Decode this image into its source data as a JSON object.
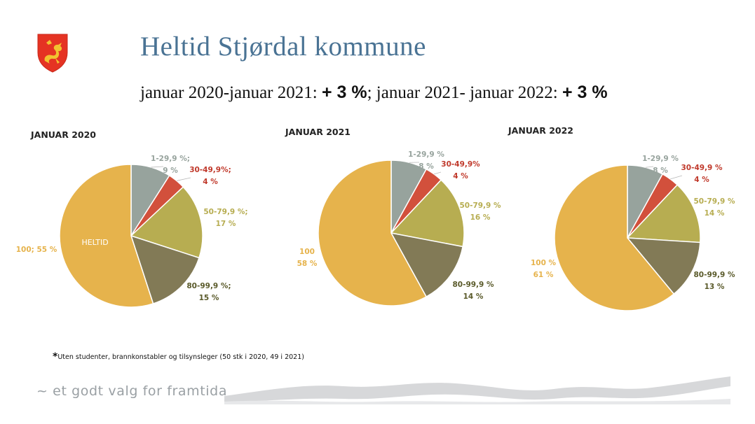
{
  "title": "Heltid Stjørdal kommune",
  "subtitle": {
    "p1": "januar 2020-januar 2021: ",
    "b1": "+ 3 %",
    "p2": "; januar 2021- januar 2022: ",
    "b2": "+ 3 %"
  },
  "footnote": {
    "star": "*",
    "text": "Uten studenter, brannkonstabler og tilsynsleger (50 stk i 2020, 49 i 2021)"
  },
  "tagline": "~ et godt valg for framtida",
  "colors": {
    "title": "#4a7394",
    "grey": "#97a39d",
    "red": "#d2503c",
    "olive": "#b7ad51",
    "dark_olive": "#827a56",
    "gold": "#e6b34c"
  },
  "chart_data": [
    {
      "type": "pie",
      "title": "JANUAR 2020",
      "slices": [
        {
          "label": "1-29,9 %;",
          "value": 9,
          "value_label": "9 %"
        },
        {
          "label": "30-49,9%;",
          "value": 4,
          "value_label": "4 %"
        },
        {
          "label": "50-79,9 %;",
          "value": 17,
          "value_label": "17 %"
        },
        {
          "label": "80-99,9 %;",
          "value": 15,
          "value_label": "15 %"
        },
        {
          "label": "100; 55 %",
          "value": 55,
          "value_label": "",
          "inner_label": "HELTID"
        }
      ]
    },
    {
      "type": "pie",
      "title": "JANUAR 2021",
      "slices": [
        {
          "label": "1-29,9 %",
          "value": 8,
          "value_label": "8 %"
        },
        {
          "label": "30-49,9%",
          "value": 4,
          "value_label": "4 %"
        },
        {
          "label": "50-79,9 %",
          "value": 16,
          "value_label": "16 %"
        },
        {
          "label": "80-99,9 %",
          "value": 14,
          "value_label": "14 %"
        },
        {
          "label": "100",
          "value": 58,
          "value_label": "58 %"
        }
      ]
    },
    {
      "type": "pie",
      "title": "JANUAR 2022",
      "slices": [
        {
          "label": "1-29,9 %",
          "value": 8,
          "value_label": "8 %"
        },
        {
          "label": "30-49,9 %",
          "value": 4,
          "value_label": "4 %"
        },
        {
          "label": "50-79,9 %",
          "value": 14,
          "value_label": "14 %"
        },
        {
          "label": "80-99,9 %",
          "value": 13,
          "value_label": "13 %"
        },
        {
          "label": "100 %",
          "value": 61,
          "value_label": "61 %"
        }
      ]
    }
  ]
}
